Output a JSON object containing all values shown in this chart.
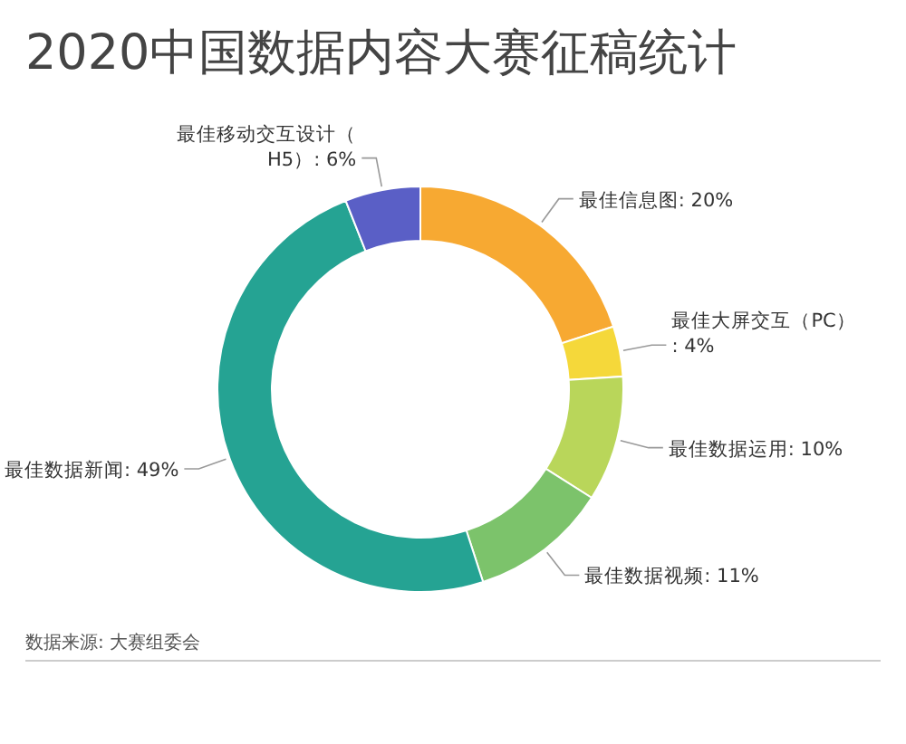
{
  "chart_data": {
    "type": "donut",
    "title": "2020中国数据内容大赛征稿统计",
    "categories": [
      "最佳信息图",
      "最佳大屏交互（PC）",
      "最佳数据运用",
      "最佳数据视频",
      "最佳数据新闻",
      "最佳移动交互设计（H5）"
    ],
    "values": [
      20,
      4,
      10,
      11,
      49,
      6
    ],
    "colors": [
      "#f7a932",
      "#f5d83a",
      "#b9d65a",
      "#7cc36b",
      "#25a393",
      "#5a5fc6"
    ],
    "value_labels": [
      ": 20%",
      ": 4%",
      ": 10%",
      ": 11%",
      ": 49%",
      ": 6%"
    ],
    "annotations": [
      "数据来源: 大赛组委会"
    ]
  }
}
